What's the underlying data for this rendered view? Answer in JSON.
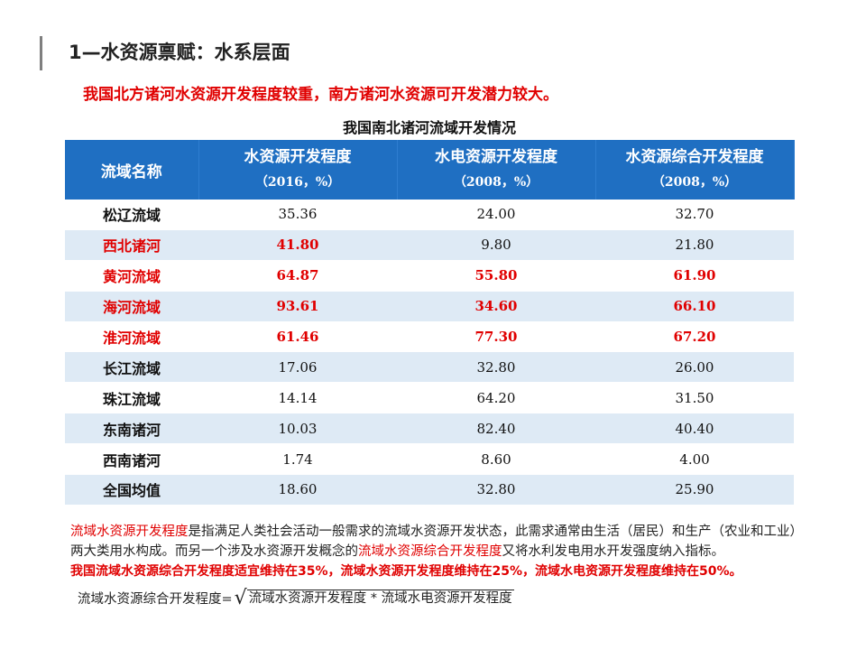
{
  "title": "1—水资源禀赋：水系层面",
  "subtitle": "我国北方诸河水资源开发程度较重，南方诸河水资源可开发潜力较大。",
  "table": {
    "caption": "我国南北诸河流域开发情况",
    "headers": [
      {
        "main": "流域名称",
        "sub": ""
      },
      {
        "main": "水资源开发程度",
        "sub": "（2016，%）"
      },
      {
        "main": "水电资源开发程度",
        "sub": "（2008，%）"
      },
      {
        "main": "水资源综合开发程度",
        "sub": "（2008，%）"
      }
    ],
    "rows": [
      {
        "name": "松辽流域",
        "v1": "35.36",
        "v2": "24.00",
        "v3": "32.70"
      },
      {
        "name": "西北诸河",
        "v1": "41.80",
        "v2": "9.80",
        "v3": "21.80"
      },
      {
        "name": "黄河流域",
        "v1": "64.87",
        "v2": "55.80",
        "v3": "61.90"
      },
      {
        "name": "海河流域",
        "v1": "93.61",
        "v2": "34.60",
        "v3": "66.10"
      },
      {
        "name": "淮河流域",
        "v1": "61.46",
        "v2": "77.30",
        "v3": "67.20"
      },
      {
        "name": "长江流域",
        "v1": "17.06",
        "v2": "32.80",
        "v3": "26.00"
      },
      {
        "name": "珠江流域",
        "v1": "14.14",
        "v2": "64.20",
        "v3": "31.50"
      },
      {
        "name": "东南诸河",
        "v1": "10.03",
        "v2": "82.40",
        "v3": "40.40"
      },
      {
        "name": "西南诸河",
        "v1": "1.74",
        "v2": "8.60",
        "v3": "4.00"
      },
      {
        "name": "全国均值",
        "v1": "18.60",
        "v2": "32.80",
        "v3": "25.90"
      }
    ]
  },
  "notes": {
    "p1_term": "流域水资源开发程度",
    "p1_rest": "是指满足人类社会活动一般需求的流域水资源开发状态，此需求通常由生活（居民）和生产（农业和工业）两大类用水构成。而另一个涉及水资源开发概念的",
    "p1_term2": "流域水资源综合开发程度",
    "p1_rest2": "又将水利发电用水开发强度纳入指标。",
    "p2": "我国流域水资源综合开发程度适宜维持在35%，流域水资源开发程度维持在25%，流域水电资源开发程度维持在50%。"
  },
  "formula": {
    "lhs": "流域水资源综合开发程度=",
    "radicand": "流域水资源开发程度 * 流域水电资源开发程度"
  },
  "colors": {
    "header_bg": "#1f6fc2",
    "stripe": "#deeaf5",
    "highlight": "#e00000"
  }
}
